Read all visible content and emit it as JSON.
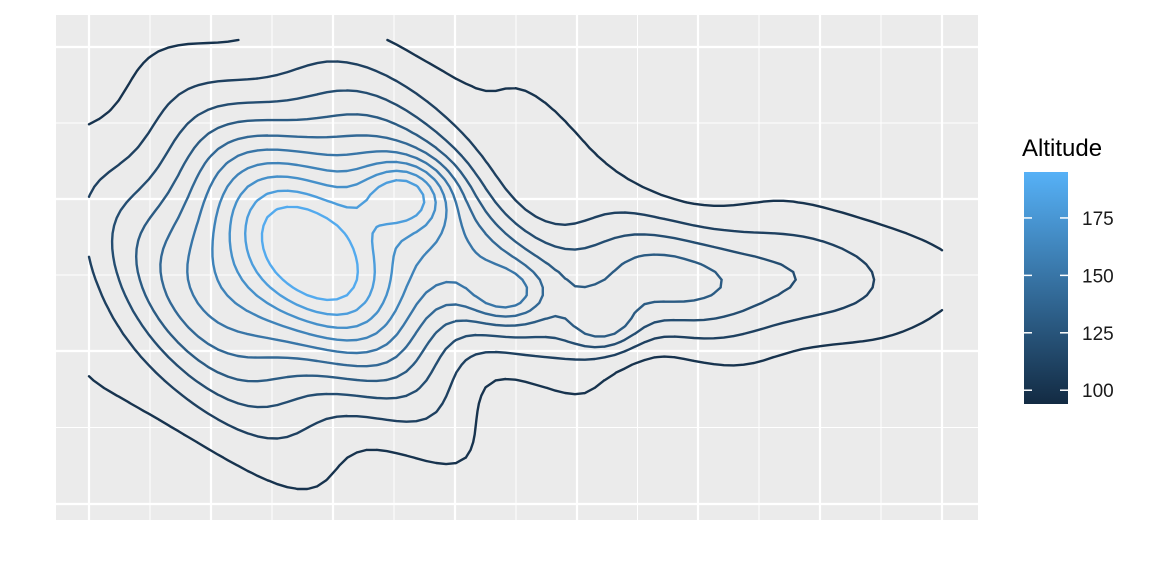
{
  "chart_data": {
    "type": "contour",
    "title": "",
    "xlabel": "",
    "ylabel": "",
    "grid": true,
    "axis_ticks_labels": false,
    "legend": {
      "title": "Altitude",
      "position": "right",
      "type": "colorbar",
      "range": [
        94,
        195
      ],
      "ticks": [
        100,
        125,
        150,
        175
      ],
      "tick_labels": [
        "100",
        "125",
        "150",
        "175"
      ],
      "color_low": "#132B43",
      "color_high": "#56B1F7"
    },
    "contour_levels": [
      100,
      110,
      120,
      130,
      140,
      150,
      160,
      170,
      180,
      190
    ],
    "peaks": [
      {
        "altitude": 195
      },
      {
        "altitude": 185
      },
      {
        "altitude": 165
      },
      {
        "altitude": 155
      }
    ]
  }
}
